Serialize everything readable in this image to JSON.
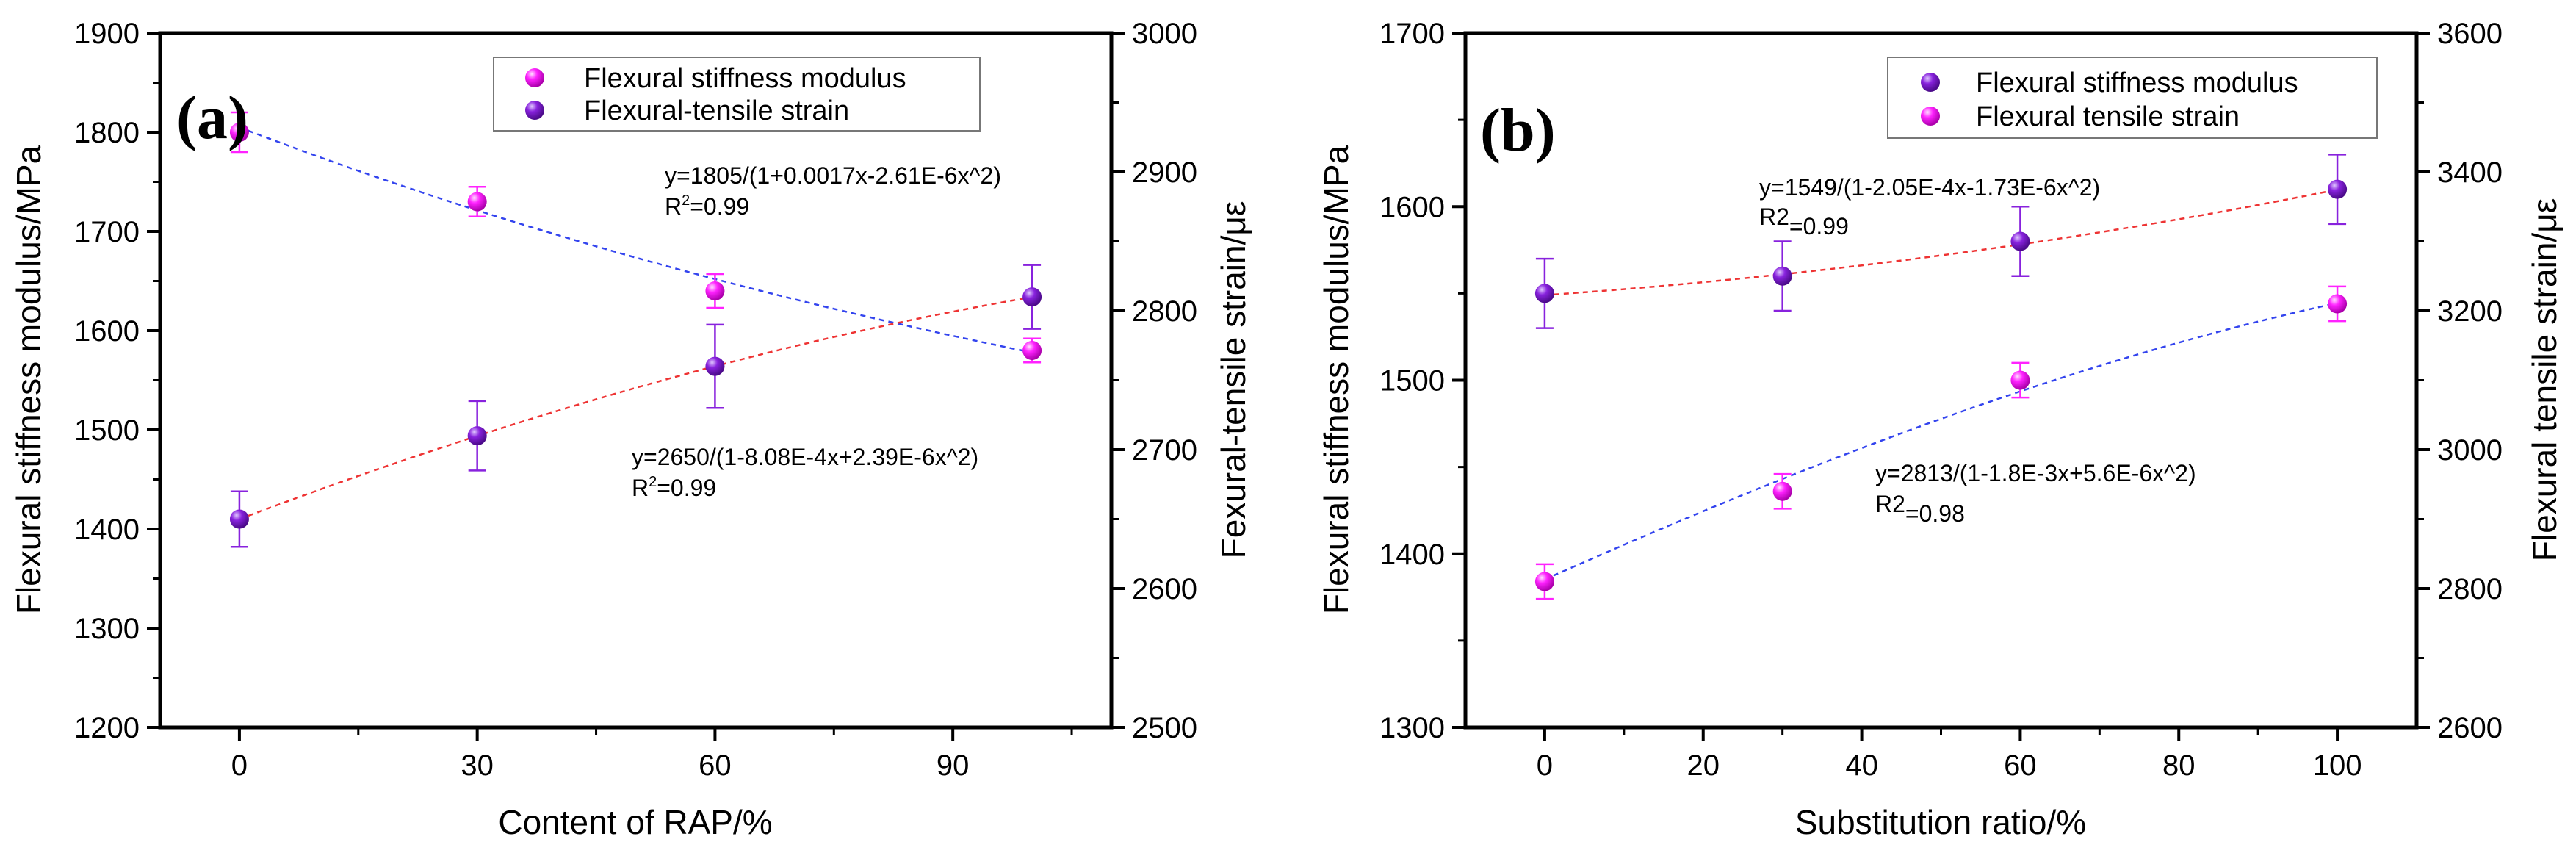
{
  "chart_data": [
    {
      "type": "scatter",
      "panel_label": "(a)",
      "xlabel": "Content of RAP/%",
      "ylabel_left": "Flexural stiffness modulus/MPa",
      "ylabel_right": "Fexural-tensile strain/με",
      "xlim": [
        -10,
        110
      ],
      "ylim_left": [
        1200,
        1900
      ],
      "ylim_right": [
        2500,
        3000
      ],
      "x_ticks": [
        0,
        30,
        60,
        90
      ],
      "y_ticks_left": [
        1200,
        1300,
        1400,
        1500,
        1600,
        1700,
        1800,
        1900
      ],
      "y_ticks_right": [
        2500,
        2600,
        2700,
        2800,
        2900,
        3000
      ],
      "legend": [
        "Flexural stiffness modulus",
        "Flexural-tensile strain"
      ],
      "series": [
        {
          "name": "Flexural stiffness modulus",
          "axis": "left",
          "color": "#ff22ff",
          "x": [
            0,
            30,
            60,
            100
          ],
          "values": [
            1800,
            1730,
            1640,
            1580
          ],
          "errors": [
            20,
            15,
            17,
            12
          ],
          "fit": {
            "a": 1805,
            "b": 0.0017,
            "c": -2.61e-06,
            "color": "#3344ee"
          },
          "equation": "y=1805/(1+0.0017x-2.61E-6x^2)",
          "r2_prefix": "R",
          "r2_sup": "2",
          "r2_value": "=0.99"
        },
        {
          "name": "Flexural-tensile strain",
          "axis": "right",
          "color": "#8822dd",
          "x": [
            0,
            30,
            60,
            100
          ],
          "values": [
            2650,
            2710,
            2760,
            2810
          ],
          "errors": [
            20,
            25,
            30,
            23
          ],
          "fit": {
            "a": 2650,
            "b": -0.000808,
            "c": 2.39e-06,
            "color": "#ee3333"
          },
          "equation": "y=2650/(1-8.08E-4x+2.39E-6x^2)",
          "r2_prefix": "R",
          "r2_sup": "2",
          "r2_value": "=0.99"
        }
      ]
    },
    {
      "type": "scatter",
      "panel_label": "(b)",
      "xlabel": "Substitution ratio/%",
      "ylabel_left": "Flexural stiffness modulus/MPa",
      "ylabel_right": "Flexural tensile strain/με",
      "xlim": [
        -10,
        110
      ],
      "ylim_left": [
        1300,
        1700
      ],
      "ylim_right": [
        2600,
        3600
      ],
      "x_ticks": [
        0,
        20,
        40,
        60,
        80,
        100
      ],
      "y_ticks_left": [
        1300,
        1400,
        1500,
        1600,
        1700
      ],
      "y_ticks_right": [
        2600,
        2800,
        3000,
        3200,
        3400,
        3600
      ],
      "legend": [
        "Flexural stiffness modulus",
        "Flexural tensile strain"
      ],
      "series": [
        {
          "name": "Flexural stiffness modulus",
          "axis": "left",
          "color": "#8822dd",
          "x": [
            0,
            30,
            60,
            100
          ],
          "values": [
            1550,
            1560,
            1580,
            1610
          ],
          "errors": [
            20,
            20,
            20,
            20
          ],
          "fit": {
            "a": 1549,
            "b": -0.000205,
            "c": -1.73e-06,
            "color": "#ee3333"
          },
          "equation": "y=1549/(1-2.05E-4x-1.73E-6x^2)",
          "r2_prefix": "R2",
          "r2_sup": "",
          "r2_value": "=0.99"
        },
        {
          "name": "Flexural tensile strain",
          "axis": "right",
          "color": "#ff22ff",
          "x": [
            0,
            30,
            60,
            100
          ],
          "values": [
            2810,
            2940,
            3100,
            3210
          ],
          "errors": [
            25,
            25,
            25,
            25
          ],
          "fit": {
            "a": 2813,
            "b": -0.0018,
            "c": 5.6e-06,
            "color": "#3344ee"
          },
          "equation": "y=2813/(1-1.8E-3x+5.6E-6x^2)",
          "r2_prefix": "R2",
          "r2_sup": "",
          "r2_value": "=0.98"
        }
      ]
    }
  ]
}
